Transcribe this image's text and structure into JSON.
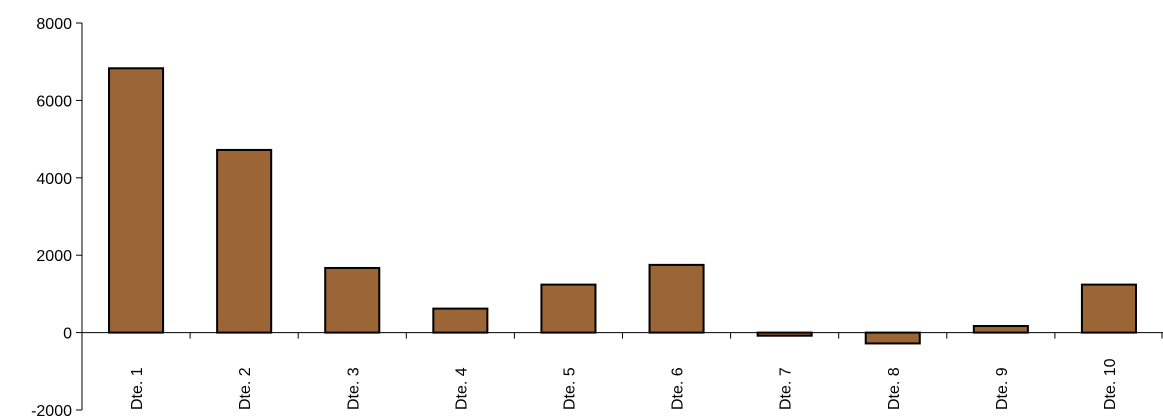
{
  "chart_data": {
    "type": "bar",
    "categories": [
      "Dte. 1",
      "Dte. 2",
      "Dte. 3",
      "Dte. 4",
      "Dte. 5",
      "Dte. 6",
      "Dte. 7",
      "Dte. 8",
      "Dte. 9",
      "Dte. 10"
    ],
    "values": [
      6830,
      4720,
      1670,
      620,
      1240,
      1750,
      -80,
      -280,
      170,
      1240
    ],
    "ylim": [
      -2000,
      8000
    ],
    "yticks": [
      -2000,
      0,
      2000,
      4000,
      6000,
      8000
    ],
    "ytick_labels": [
      "-2000",
      "0",
      "2000",
      "4000",
      "6000",
      "8000"
    ],
    "grid": false,
    "legend": "none",
    "bar_color": "#9B6535",
    "border_color": "#000000"
  }
}
